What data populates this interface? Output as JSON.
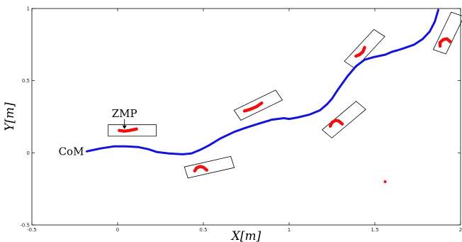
{
  "chart_data": {
    "type": "line",
    "xlabel": "X[m]",
    "ylabel": "Y[m]",
    "xlim": [
      -0.5,
      2
    ],
    "ylim": [
      -0.5,
      1
    ],
    "x_ticks": [
      -0.5,
      0,
      0.5,
      1,
      1.5,
      2
    ],
    "x_tick_labels": [
      "-0.5",
      "0",
      "0.5",
      "1",
      "1.5",
      "2"
    ],
    "y_ticks": [
      -0.5,
      0,
      0.5,
      1
    ],
    "y_tick_labels": [
      "-0.5",
      "0",
      "0.5",
      "1"
    ],
    "grid": false,
    "colors": {
      "com": "#1515d6",
      "zmp": "#ee1111",
      "footprint": "#000000"
    },
    "annotations": {
      "com_label": "CoM",
      "zmp_label": "ZMP"
    },
    "com_trajectory": {
      "x": [
        -0.18,
        -0.1,
        -0.02,
        0.05,
        0.12,
        0.18,
        0.23,
        0.3,
        0.38,
        0.43,
        0.48,
        0.53,
        0.6,
        0.68,
        0.75,
        0.83,
        0.9,
        0.97,
        1.0,
        1.05,
        1.12,
        1.18,
        1.22,
        1.25,
        1.28,
        1.31,
        1.34,
        1.39,
        1.44,
        1.5,
        1.56,
        1.6,
        1.63,
        1.67,
        1.73,
        1.78,
        1.82,
        1.85,
        1.87
      ],
      "y": [
        0.01,
        0.03,
        0.045,
        0.045,
        0.04,
        0.025,
        0.005,
        -0.005,
        -0.01,
        -0.005,
        0.02,
        0.05,
        0.1,
        0.145,
        0.175,
        0.205,
        0.23,
        0.24,
        0.235,
        0.245,
        0.265,
        0.295,
        0.335,
        0.375,
        0.43,
        0.48,
        0.53,
        0.6,
        0.645,
        0.665,
        0.68,
        0.7,
        0.71,
        0.725,
        0.75,
        0.79,
        0.84,
        0.91,
        0.99
      ]
    },
    "zmp_segments": [
      {
        "x": [
          0.01,
          0.04,
          0.07,
          0.11
        ],
        "y": [
          0.155,
          0.15,
          0.155,
          0.165
        ]
      },
      {
        "x": [
          0.45,
          0.46,
          0.48,
          0.5,
          0.52
        ],
        "y": [
          -0.125,
          -0.105,
          -0.095,
          -0.1,
          -0.12
        ]
      },
      {
        "x": [
          0.74,
          0.77,
          0.81,
          0.84
        ],
        "y": [
          0.29,
          0.3,
          0.32,
          0.345
        ]
      },
      {
        "x": [
          1.24,
          1.25,
          1.27,
          1.29,
          1.31
        ],
        "y": [
          0.185,
          0.21,
          0.225,
          0.22,
          0.2
        ]
      },
      {
        "x": [
          1.39,
          1.41,
          1.43,
          1.44
        ],
        "y": [
          0.67,
          0.68,
          0.7,
          0.73
        ]
      },
      {
        "x": [
          1.88,
          1.88,
          1.9,
          1.92,
          1.94
        ],
        "y": [
          0.74,
          0.765,
          0.785,
          0.79,
          0.77
        ]
      }
    ],
    "zmp_point": {
      "x": 1.56,
      "y": -0.2
    },
    "footprints": [
      {
        "cx": 0.085,
        "cy": 0.155,
        "length": 0.28,
        "width": 0.08,
        "angle_deg": 0
      },
      {
        "cx": 0.535,
        "cy": -0.1,
        "length": 0.28,
        "width": 0.08,
        "angle_deg": 15
      },
      {
        "cx": 0.82,
        "cy": 0.33,
        "length": 0.28,
        "width": 0.08,
        "angle_deg": 30
      },
      {
        "cx": 1.32,
        "cy": 0.23,
        "length": 0.28,
        "width": 0.08,
        "angle_deg": 45
      },
      {
        "cx": 1.44,
        "cy": 0.72,
        "length": 0.28,
        "width": 0.08,
        "angle_deg": 52
      },
      {
        "cx": 1.93,
        "cy": 0.83,
        "length": 0.28,
        "width": 0.08,
        "angle_deg": 68
      }
    ]
  }
}
